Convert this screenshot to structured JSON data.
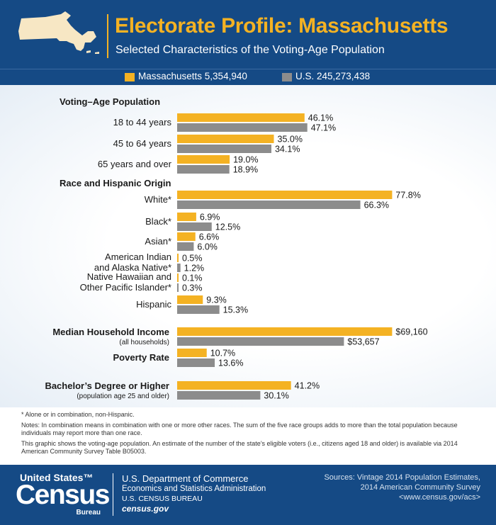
{
  "header": {
    "title": "Electorate Profile: Massachusetts",
    "subtitle": "Selected Characteristics of the Voting-Age Population"
  },
  "legend": [
    {
      "label": "Massachusetts 5,354,940",
      "color": "#f4b223"
    },
    {
      "label": "U.S. 245,273,438",
      "color": "#8c8c8c"
    }
  ],
  "colors": {
    "ma": "#f4b223",
    "us": "#8c8c8c",
    "brand": "#154a85"
  },
  "chart_data": {
    "type": "bar",
    "orientation": "horizontal",
    "series_names": [
      "Massachusetts 5,354,940",
      "U.S. 245,273,438"
    ],
    "sections": [
      {
        "title": "Voting–Age Population",
        "scale_max": 100,
        "rows": [
          {
            "label": [
              "18 to 44 years"
            ],
            "ma": 46.1,
            "us": 47.1,
            "ma_text": "46.1%",
            "us_text": "47.1%"
          },
          {
            "label": [
              "45 to 64 years"
            ],
            "ma": 35.0,
            "us": 34.1,
            "ma_text": "35.0%",
            "us_text": "34.1%"
          },
          {
            "label": [
              "65 years and over"
            ],
            "ma": 19.0,
            "us": 18.9,
            "ma_text": "19.0%",
            "us_text": "18.9%"
          }
        ]
      },
      {
        "title": "Race and Hispanic Origin",
        "scale_max": 100,
        "rows": [
          {
            "label": [
              "White*"
            ],
            "ma": 77.8,
            "us": 66.3,
            "ma_text": "77.8%",
            "us_text": "66.3%"
          },
          {
            "label": [
              "Black*"
            ],
            "ma": 6.9,
            "us": 12.5,
            "ma_text": "6.9%",
            "us_text": "12.5%"
          },
          {
            "label": [
              "Asian*"
            ],
            "ma": 6.6,
            "us": 6.0,
            "ma_text": "6.6%",
            "us_text": "6.0%"
          },
          {
            "label": [
              "American Indian",
              "and Alaska Native*"
            ],
            "ma": 0.5,
            "us": 1.2,
            "ma_text": "0.5%",
            "us_text": "1.2%"
          },
          {
            "label": [
              "Native Hawaiian and",
              "Other Pacific Islander*"
            ],
            "ma": 0.1,
            "us": 0.3,
            "ma_text": "0.1%",
            "us_text": "0.3%"
          },
          {
            "label": [
              "Hispanic"
            ],
            "ma": 9.3,
            "us": 15.3,
            "ma_text": "9.3%",
            "us_text": "15.3%"
          }
        ]
      },
      {
        "title": "Median Household Income",
        "subtitle": "(all households)",
        "scale_max": 88900,
        "rows": [
          {
            "label": [],
            "ma": 69160,
            "us": 53657,
            "ma_text": "$69,160",
            "us_text": "$53,657"
          }
        ]
      },
      {
        "title": "Poverty Rate",
        "scale_max": 100,
        "rows": [
          {
            "label": [],
            "ma": 10.7,
            "us": 13.6,
            "ma_text": "10.7%",
            "us_text": "13.6%"
          }
        ]
      },
      {
        "title": "Bachelor’s Degree or Higher",
        "subtitle": "(population age 25 and older)",
        "scale_max": 100,
        "rows": [
          {
            "label": [],
            "ma": 41.2,
            "us": 30.1,
            "ma_text": "41.2%",
            "us_text": "30.1%"
          }
        ]
      }
    ]
  },
  "notes": {
    "asterisk": "* Alone or in combination, non-Hispanic.",
    "combination": "Notes: In combination means in combination with one or more other races. The sum of the five race groups adds to more than the total population because individuals may report more than one race.",
    "eligible": "This graphic shows the voting-age population. An estimate of the number of the state’s eligible voters (i.e., citizens aged 18 and older) is available via 2014 American Community Survey Table B05003."
  },
  "footer": {
    "wordmark_top": "United States™",
    "wordmark_main": "Census",
    "wordmark_bottom": "Bureau",
    "dept": "U.S. Department of Commerce",
    "esa": "Economics and Statistics Administration",
    "bureau": "U.S. CENSUS BUREAU",
    "website": "census.gov",
    "sources": [
      "Sources: Vintage 2014 Population Estimates,",
      "2014 American Community Survey",
      "<www.census.gov/acs>"
    ]
  }
}
